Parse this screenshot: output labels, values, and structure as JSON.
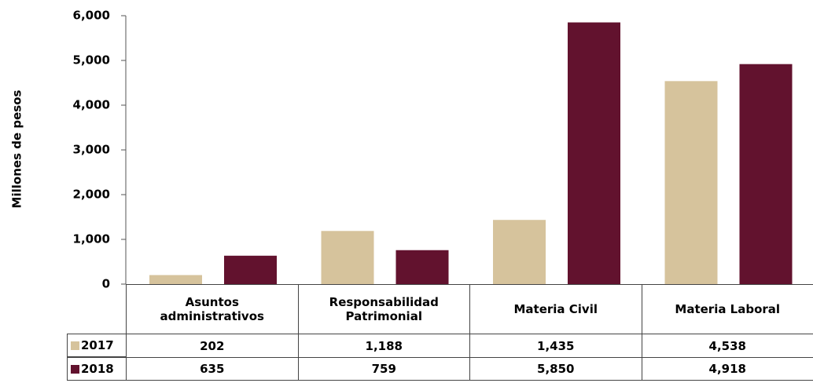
{
  "chart_data": {
    "type": "bar",
    "y_label": "Millones de pesos",
    "categories": [
      "Asuntos administrativos",
      "Responsabilidad Patrimonial",
      "Materia Civil",
      "Materia Laboral"
    ],
    "series": [
      {
        "name": "2017",
        "color": "#d6c39c",
        "values": [
          202,
          1188,
          1435,
          4538
        ],
        "value_labels": [
          "202",
          "1,188",
          "1,435",
          "4,538"
        ]
      },
      {
        "name": "2018",
        "color": "#62122e",
        "values": [
          635,
          759,
          5850,
          4918
        ],
        "value_labels": [
          "635",
          "759",
          "5,850",
          "4,918"
        ]
      }
    ],
    "ylim": [
      0,
      6000
    ],
    "yticks": [
      0,
      {
        "value": 1000,
        "label": "1,000"
      },
      {
        "value": 2000,
        "label": "2,000"
      },
      {
        "value": 3000,
        "label": "3,000"
      },
      {
        "value": 4000,
        "label": "4,000"
      },
      {
        "value": 5000,
        "label": "5,000"
      },
      {
        "value": 6000,
        "label": "6,000"
      }
    ]
  }
}
